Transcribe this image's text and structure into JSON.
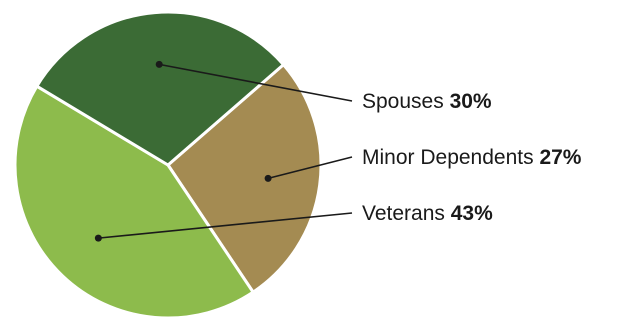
{
  "chart_data": {
    "type": "pie",
    "title": "",
    "slices": [
      {
        "label": "Spouses",
        "value": 30,
        "value_label": "30%",
        "color": "#3b6b35"
      },
      {
        "label": "Minor Dependents",
        "value": 27,
        "value_label": "27%",
        "color": "#a48b52"
      },
      {
        "label": "Veterans",
        "value": 43,
        "value_label": "43%",
        "color": "#8dbb4c"
      }
    ],
    "slice_border_color": "#ffffff",
    "leader_line_color": "#1a1a1a",
    "legend": "labels to the right with leader lines"
  }
}
